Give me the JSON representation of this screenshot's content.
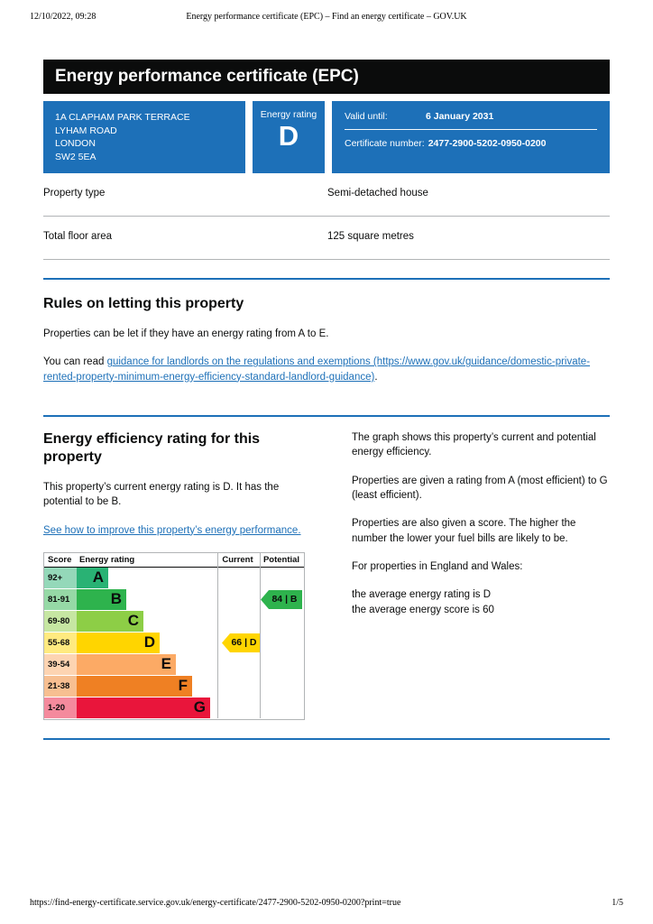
{
  "print_chrome": {
    "datetime": "12/10/2022, 09:28",
    "doc_title": "Energy performance certificate (EPC) – Find an energy certificate – GOV.UK",
    "url": "https://find-energy-certificate.service.gov.uk/energy-certificate/2477-2900-5202-0950-0200?print=true",
    "page_indicator": "1/5"
  },
  "colors": {
    "govuk_blue": "#1d70b8",
    "banner_black": "#0b0c0c",
    "divider_grey": "#b1b4b6",
    "link_blue": "#1d70b8"
  },
  "banner": {
    "title": "Energy performance certificate (EPC)"
  },
  "summary": {
    "address_lines": [
      "1A CLAPHAM PARK TERRACE",
      "LYHAM ROAD",
      "LONDON",
      "SW2 5EA"
    ],
    "rating_label": "Energy rating",
    "rating_value": "D",
    "valid_until_label": "Valid until:",
    "valid_until_value": "6 January 2031",
    "certificate_label": "Certificate number:",
    "certificate_value": "2477-2900-5202-0950-0200"
  },
  "facts": [
    {
      "label": "Property type",
      "value": "Semi-detached house"
    },
    {
      "label": "Total floor area",
      "value": "125 square metres"
    }
  ],
  "rules": {
    "heading": "Rules on letting this property",
    "para1": "Properties can be let if they have an energy rating from A to E.",
    "read_prefix": "You can read ",
    "link_text": "guidance for landlords on the regulations and exemptions (https://www.gov.uk/guidance/domestic-private-rented-property-minimum-energy-efficiency-standard-landlord-guidance)",
    "read_suffix": "."
  },
  "rating_section": {
    "heading": "Energy efficiency rating for this property",
    "intro": "This property’s current energy rating is D. It has the potential to be B.",
    "improve_link": "See how to improve this property’s energy performance.",
    "right_paragraphs": [
      "The graph shows this property’s current and potential energy efficiency.",
      "Properties are given a rating from A (most efficient) to G (least efficient).",
      "Properties are also given a score. The higher the number the lower your fuel bills are likely to be.",
      "For properties in England and Wales:"
    ],
    "average_lines": [
      "the average energy rating is D",
      "the average energy score is 60"
    ]
  },
  "chart_data": {
    "type": "bar",
    "title": "Energy efficiency rating",
    "columns": [
      "Score",
      "Energy rating",
      "Current",
      "Potential"
    ],
    "bands": [
      {
        "letter": "A",
        "score": "92+",
        "color": "#29b274",
        "tint_color": "#94d8b9"
      },
      {
        "letter": "B",
        "score": "81-91",
        "color": "#2eb34d",
        "tint_color": "#96d9a6"
      },
      {
        "letter": "C",
        "score": "69-80",
        "color": "#8dce46",
        "tint_color": "#c6e6a2"
      },
      {
        "letter": "D",
        "score": "55-68",
        "color": "#ffd500",
        "tint_color": "#ffea80"
      },
      {
        "letter": "E",
        "score": "39-54",
        "color": "#fcaa65",
        "tint_color": "#fdd4b2"
      },
      {
        "letter": "F",
        "score": "21-38",
        "color": "#ef8023",
        "tint_color": "#f7bf91"
      },
      {
        "letter": "G",
        "score": "1-20",
        "color": "#e9153b",
        "tint_color": "#f48a9d"
      }
    ],
    "current": {
      "score": 66,
      "band": "D",
      "label": "66 | D",
      "color": "#ffd500"
    },
    "potential": {
      "score": 84,
      "band": "B",
      "label": "84 | B",
      "color": "#2eb34d"
    }
  }
}
